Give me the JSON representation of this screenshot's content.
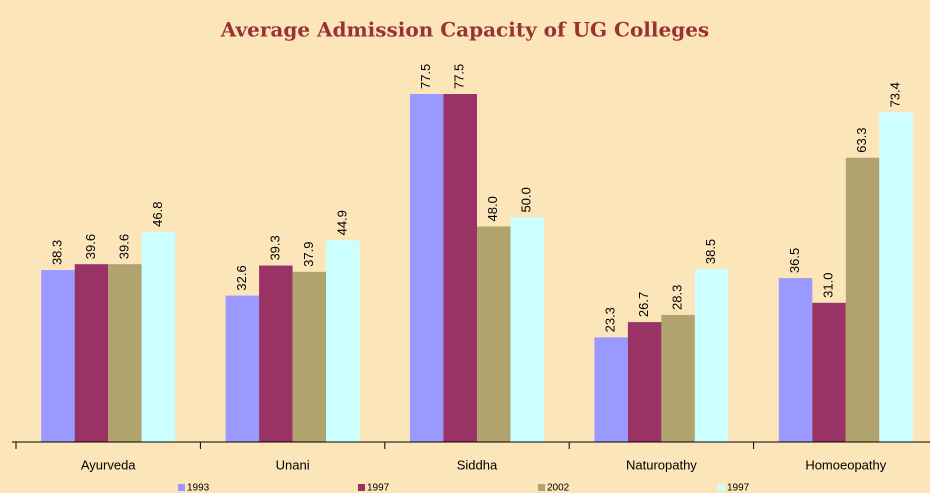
{
  "chart_data": {
    "type": "bar",
    "title": "Average Admission Capacity of UG Colleges",
    "categories": [
      "Ayurveda",
      "Unani",
      "Siddha",
      "Naturopathy",
      "Homoeopathy"
    ],
    "series": [
      {
        "name": "1993",
        "color": "#9999ff",
        "values": [
          38.3,
          32.6,
          77.5,
          23.3,
          36.5
        ],
        "value_labels": [
          "38.3",
          "32.6",
          "77.5",
          "23.3",
          "36.5"
        ]
      },
      {
        "name": "1997",
        "color": "#993366",
        "values": [
          39.6,
          39.3,
          77.5,
          26.7,
          31.0
        ],
        "value_labels": [
          "39.6",
          "39.3",
          "77.5",
          "26.7",
          "31.0"
        ]
      },
      {
        "name": "2002",
        "color": "#b0a36e",
        "values": [
          39.6,
          37.9,
          48.0,
          28.3,
          63.3
        ],
        "value_labels": [
          "39.6",
          "37.9",
          "48.0",
          "28.3",
          "63.3"
        ]
      },
      {
        "name": "1997",
        "color": "#ccffff",
        "values": [
          46.8,
          44.9,
          50.0,
          38.5,
          73.4
        ],
        "value_labels": [
          "46.8",
          "44.9",
          "50.0",
          "38.5",
          "73.4"
        ]
      }
    ],
    "ylim": [
      0,
      90
    ],
    "grid": false,
    "legend": "bottom"
  }
}
